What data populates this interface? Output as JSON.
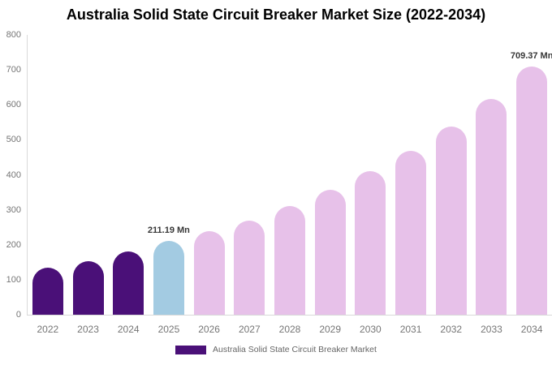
{
  "title": "Australia Solid State Circuit Breaker Market Size (2022-2034)",
  "legend": {
    "label": "Australia Solid State Circuit Breaker Market",
    "swatch_color": "#4A1078"
  },
  "colors": {
    "historical_bar": "#4A1078",
    "base_year_bar": "#A3CBE2",
    "forecast_bar": "#E7C1E9",
    "axis_line": "#D9D9D9",
    "axis_text": "#757575",
    "data_label_text": "#373737",
    "title_text": "#000000"
  },
  "chart_data": {
    "type": "bar",
    "title": "Australia Solid State Circuit Breaker Market Size (2022-2034)",
    "xlabel": "",
    "ylabel": "",
    "unit": "Mn",
    "categories": [
      "2022",
      "2023",
      "2024",
      "2025",
      "2026",
      "2027",
      "2028",
      "2029",
      "2030",
      "2031",
      "2032",
      "2033",
      "2034"
    ],
    "values": [
      135,
      154,
      180,
      211.19,
      238,
      268,
      310,
      356,
      410,
      469,
      538,
      616,
      709.37
    ],
    "bar_colors": [
      "#4A1078",
      "#4A1078",
      "#4A1078",
      "#A3CBE2",
      "#E7C1E9",
      "#E7C1E9",
      "#E7C1E9",
      "#E7C1E9",
      "#E7C1E9",
      "#E7C1E9",
      "#E7C1E9",
      "#E7C1E9",
      "#E7C1E9"
    ],
    "data_labels": [
      {
        "category": "2025",
        "text": "211.19 Mn"
      },
      {
        "category": "2034",
        "text": "709.37 Mn"
      }
    ],
    "series": [
      {
        "name": "Australia Solid State Circuit Breaker Market",
        "values": [
          135,
          154,
          180,
          211.19,
          238,
          268,
          310,
          356,
          410,
          469,
          538,
          616,
          709.37
        ]
      }
    ],
    "ylim": [
      0,
      800
    ],
    "y_ticks": [
      0,
      100,
      200,
      300,
      400,
      500,
      600,
      700,
      800
    ],
    "grid": false,
    "legend_position": "bottom"
  }
}
